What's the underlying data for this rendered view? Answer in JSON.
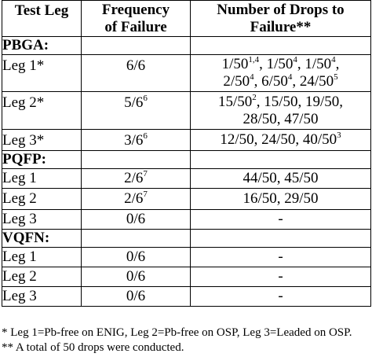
{
  "headers": {
    "test_leg": "Test Leg",
    "frequency_line1": "Frequency",
    "frequency_line2": "of Failure",
    "drops_line1": "Number of Drops to",
    "drops_line2": "Failure**"
  },
  "sections": [
    {
      "name": "PBGA:",
      "rows": [
        {
          "leg": "Leg 1*",
          "freq": {
            "base": "6/6",
            "sup": ""
          },
          "drops": [
            [
              {
                "t": "1/50",
                "s": "1,4"
              },
              {
                "t": ", 1/50",
                "s": "4"
              },
              {
                "t": ", 1/50",
                "s": "4"
              },
              {
                "t": ",",
                "s": ""
              }
            ],
            [
              {
                "t": "2/50",
                "s": "4"
              },
              {
                "t": ", 6/50",
                "s": "4"
              },
              {
                "t": ", 24/50",
                "s": "5"
              }
            ]
          ]
        },
        {
          "leg": "Leg 2*",
          "freq": {
            "base": "5/6",
            "sup": "6"
          },
          "drops": [
            [
              {
                "t": "15/50",
                "s": "2"
              },
              {
                "t": ", 15/50, 19/50,",
                "s": ""
              }
            ],
            [
              {
                "t": "28/50, 47/50",
                "s": ""
              }
            ]
          ]
        },
        {
          "leg": "Leg 3*",
          "freq": {
            "base": "3/6",
            "sup": "6"
          },
          "drops": [
            [
              {
                "t": "12/50, 24/50, 40/50",
                "s": "3"
              }
            ]
          ]
        }
      ]
    },
    {
      "name": "PQFP:",
      "rows": [
        {
          "leg": "Leg 1",
          "freq": {
            "base": "2/6",
            "sup": "7"
          },
          "drops": [
            [
              {
                "t": "44/50, 45/50",
                "s": ""
              }
            ]
          ]
        },
        {
          "leg": "Leg 2",
          "freq": {
            "base": "2/6",
            "sup": "7"
          },
          "drops": [
            [
              {
                "t": "16/50, 29/50",
                "s": ""
              }
            ]
          ]
        },
        {
          "leg": "Leg 3",
          "freq": {
            "base": "0/6",
            "sup": ""
          },
          "drops": [
            [
              {
                "t": "-",
                "s": ""
              }
            ]
          ]
        }
      ]
    },
    {
      "name": "VQFN:",
      "rows": [
        {
          "leg": "Leg 1",
          "freq": {
            "base": "0/6",
            "sup": ""
          },
          "drops": [
            [
              {
                "t": "-",
                "s": ""
              }
            ]
          ]
        },
        {
          "leg": "Leg 2",
          "freq": {
            "base": "0/6",
            "sup": ""
          },
          "drops": [
            [
              {
                "t": "-",
                "s": ""
              }
            ]
          ]
        },
        {
          "leg": "Leg 3",
          "freq": {
            "base": "0/6",
            "sup": ""
          },
          "drops": [
            [
              {
                "t": "-",
                "s": ""
              }
            ]
          ]
        }
      ]
    }
  ],
  "footnotes": [
    "* Leg 1=Pb-free on ENIG, Leg 2=Pb-free on OSP, Leg 3=Leaded on OSP.",
    "** A total of 50 drops were conducted."
  ]
}
